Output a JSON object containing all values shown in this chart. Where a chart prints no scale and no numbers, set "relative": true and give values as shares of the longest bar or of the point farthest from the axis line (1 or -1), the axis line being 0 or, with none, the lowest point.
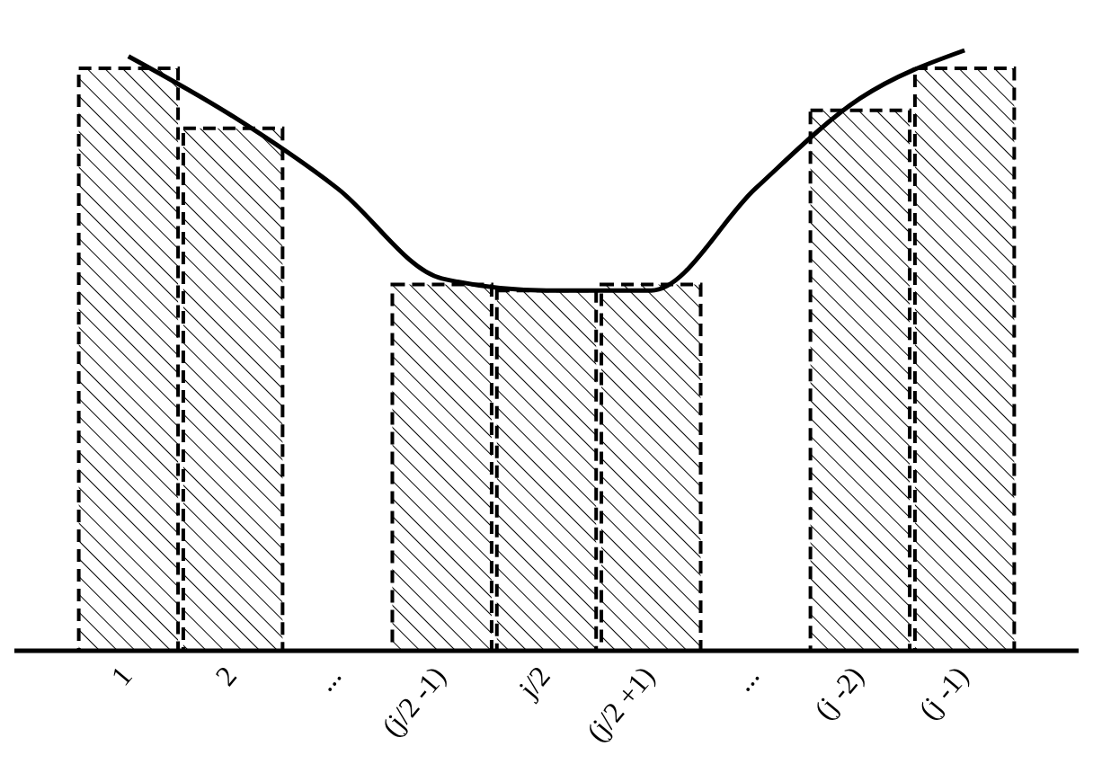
{
  "chart_data": {
    "type": "bar",
    "relative": true,
    "categories": [
      "1",
      "2",
      "...",
      "(j/2 -1)",
      "j/2",
      "(j/2 +1)",
      "...",
      "(j -2)",
      "(j -1)"
    ],
    "series": [
      {
        "color": "#000000",
        "line_style": "dashed",
        "values": [
          0.97,
          0.87,
          null,
          0.61,
          0.6,
          0.61,
          null,
          0.9,
          0.97
        ]
      },
      {
        "type": "line",
        "color": "#000000",
        "line_style": "solid",
        "marker": "none",
        "values": [
          0.99,
          0.89,
          0.77,
          0.62,
          0.6,
          0.6,
          0.77,
          0.92,
          1
        ]
      }
    ]
  }
}
